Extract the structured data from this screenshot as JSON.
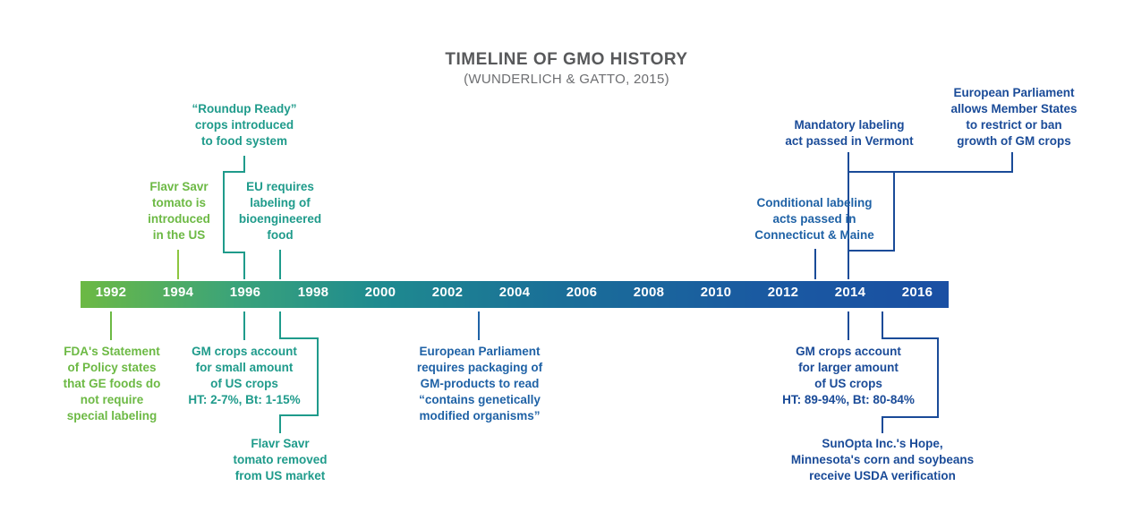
{
  "title": "TIMELINE OF GMO HISTORY",
  "subtitle": "(WUNDERLICH & GATTO, 2015)",
  "years": [
    "1992",
    "1994",
    "1996",
    "1998",
    "2000",
    "2002",
    "2004",
    "2006",
    "2008",
    "2010",
    "2012",
    "2014",
    "2016"
  ],
  "events": {
    "e1992_fda": "FDA's Statement\nof Policy states\nthat GE foods do\nnot require\nspecial labeling",
    "e1994_flavr": "Flavr Savr\ntomato is\nintroduced\nin the US",
    "e1996_roundup": "“Roundup Ready”\ncrops introduced\nto food system",
    "e1997_eu": "EU requires\nlabeling of\nbioengineered\nfood",
    "e1996_gmsmall": "GM crops account\nfor small amount\nof US crops\nHT: 2-7%, Bt: 1-15%",
    "e1997_removed": "Flavr Savr\ntomato removed\nfrom US market",
    "e2003_ep": "European Parliament\nrequires packaging of\nGM-products to read\n“contains genetically\nmodified organisms”",
    "e2013_conditional": "Conditional labeling\nacts passed in\nConnecticut & Maine",
    "e2014_vermont": "Mandatory labeling\nact passed in Vermont",
    "e2015_ep": "European Parliament\nallows Member States\nto restrict or ban\ngrowth of GM crops",
    "e2014_gmlarge": "GM crops account\nfor larger amount\nof US crops\nHT: 89-94%, Bt: 80-84%",
    "e2015_sunopta": "SunOpta Inc.'s Hope,\nMinnesota's corn and soybeans\nreceive USDA verification"
  },
  "colors": {
    "green": "#6cb944",
    "teal": "#1f9b8b",
    "blue": "#1f62a6",
    "navy": "#1a4b98",
    "title": "#58595b"
  }
}
